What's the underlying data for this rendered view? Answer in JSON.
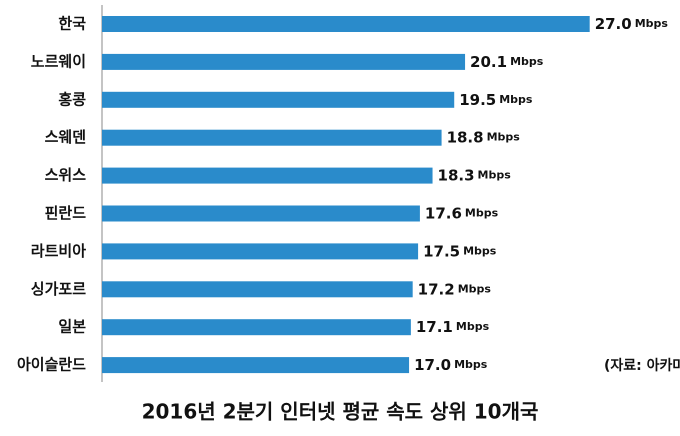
{
  "chart_data": {
    "type": "bar",
    "orientation": "horizontal",
    "title": "2016년 2분기 인터넷 평균 속도 상위 10개국",
    "annotation": "(자료: 아카마이)",
    "unit": "Mbps",
    "categories": [
      "한국",
      "노르웨이",
      "홍콩",
      "스웨덴",
      "스위스",
      "핀란드",
      "라트비아",
      "싱가포르",
      "일본",
      "아이슬란드"
    ],
    "values": [
      27.0,
      20.1,
      19.5,
      18.8,
      18.3,
      17.6,
      17.5,
      17.2,
      17.1,
      17.0
    ],
    "value_labels": [
      "27.0",
      "20.1",
      "19.5",
      "18.8",
      "18.3",
      "17.6",
      "17.5",
      "17.2",
      "17.1",
      "17.0"
    ],
    "color": "#2a8bcb",
    "xlim": [
      0,
      32
    ]
  }
}
